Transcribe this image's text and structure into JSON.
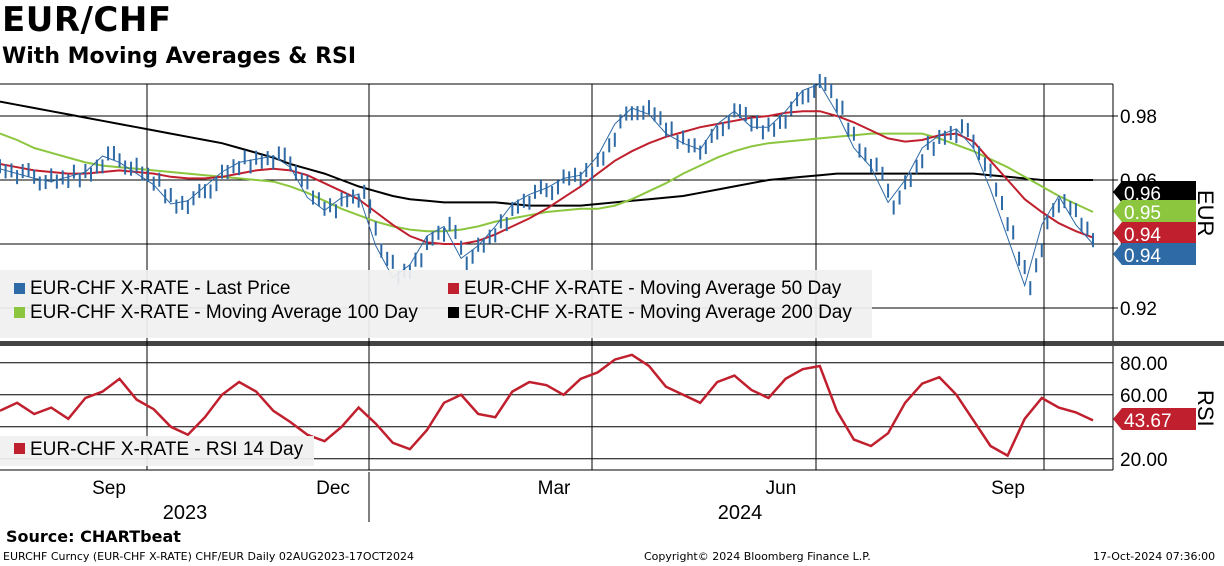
{
  "header": {
    "title": "EUR/CHF",
    "subtitle": "With Moving Averages & RSI"
  },
  "footer": {
    "source": "Source: CHARTbeat",
    "security": "EURCHF Curncy (EUR-CHF X-RATE) CHF/EUR  Daily 02AUG2023-17OCT2024",
    "copyright": "Copyright© 2024 Bloomberg Finance L.P.",
    "timestamp": "17-Oct-2024 07:36:00"
  },
  "colors": {
    "price": "#2e6aa6",
    "ma50": "#c0202e",
    "ma100": "#8cc63f",
    "ma200": "#000000",
    "rsi": "#c0202e"
  },
  "chart_data": [
    {
      "type": "line",
      "title": "EUR/CHF",
      "ylabel": "EUR",
      "ylim": [
        0.91,
        0.99
      ],
      "yticks": [
        0.92,
        0.94,
        0.96,
        0.98
      ],
      "ytick_labels": [
        "0.92",
        "0.94",
        "0.96",
        "0.98"
      ],
      "x_month_labels": [
        "Sep",
        "Dec",
        "Mar",
        "Jun",
        "Sep"
      ],
      "x_year_labels": [
        "2023",
        "2024"
      ],
      "x": [
        0,
        1,
        2,
        3,
        4,
        5,
        6,
        7,
        8,
        9,
        10,
        11,
        12,
        13,
        14,
        15,
        16,
        17,
        18,
        19,
        20,
        21,
        22,
        23,
        24,
        25,
        26,
        27,
        28,
        29,
        30,
        31,
        32,
        33,
        34,
        35,
        36,
        37,
        38,
        39,
        40,
        41,
        42,
        43,
        44,
        45,
        46,
        47,
        48,
        49,
        50,
        51,
        52,
        53,
        54,
        55,
        56,
        57,
        58,
        59,
        60,
        61,
        62,
        63,
        64
      ],
      "series": [
        {
          "name": "EUR-CHF X-RATE - Last Price",
          "color": "#2e6aa6",
          "values": [
            0.9635,
            0.962,
            0.9605,
            0.9595,
            0.961,
            0.9625,
            0.9675,
            0.9655,
            0.962,
            0.9585,
            0.9525,
            0.9535,
            0.958,
            0.9625,
            0.9655,
            0.9665,
            0.9675,
            0.964,
            0.9545,
            0.9505,
            0.9545,
            0.9555,
            0.9395,
            0.9295,
            0.9335,
            0.9425,
            0.9455,
            0.9355,
            0.9395,
            0.9455,
            0.9525,
            0.9555,
            0.9575,
            0.9605,
            0.9615,
            0.9675,
            0.9775,
            0.9825,
            0.9805,
            0.9745,
            0.9715,
            0.9695,
            0.9775,
            0.9815,
            0.9765,
            0.9765,
            0.9815,
            0.988,
            0.99,
            0.981,
            0.97,
            0.964,
            0.953,
            0.96,
            0.97,
            0.974,
            0.976,
            0.97,
            0.957,
            0.942,
            0.927,
            0.946,
            0.955,
            0.946,
            0.94
          ]
        },
        {
          "name": "EUR-CHF X-RATE - Moving Average 50 Day",
          "color": "#c0202e",
          "values": [
            0.965,
            0.964,
            0.963,
            0.9625,
            0.962,
            0.962,
            0.9625,
            0.963,
            0.9625,
            0.962,
            0.961,
            0.9605,
            0.9605,
            0.961,
            0.962,
            0.963,
            0.9635,
            0.963,
            0.9615,
            0.959,
            0.9565,
            0.954,
            0.95,
            0.946,
            0.9425,
            0.9405,
            0.94,
            0.94,
            0.941,
            0.943,
            0.9455,
            0.948,
            0.951,
            0.9545,
            0.958,
            0.962,
            0.966,
            0.969,
            0.9715,
            0.9735,
            0.975,
            0.9765,
            0.9775,
            0.9785,
            0.9795,
            0.98,
            0.981,
            0.9815,
            0.9815,
            0.98,
            0.978,
            0.9755,
            0.973,
            0.972,
            0.9725,
            0.974,
            0.9745,
            0.972,
            0.966,
            0.96,
            0.954,
            0.95,
            0.9465,
            0.944,
            0.942
          ]
        },
        {
          "name": "EUR-CHF X-RATE - Moving Average 100 Day",
          "color": "#8cc63f",
          "values": [
            0.9745,
            0.9725,
            0.97,
            0.9685,
            0.967,
            0.9655,
            0.9645,
            0.964,
            0.9635,
            0.963,
            0.9625,
            0.962,
            0.9615,
            0.961,
            0.9605,
            0.96,
            0.9595,
            0.958,
            0.956,
            0.9535,
            0.951,
            0.949,
            0.947,
            0.9455,
            0.9445,
            0.944,
            0.944,
            0.9445,
            0.9455,
            0.947,
            0.948,
            0.949,
            0.95,
            0.9505,
            0.951,
            0.951,
            0.952,
            0.954,
            0.9565,
            0.959,
            0.962,
            0.9645,
            0.967,
            0.969,
            0.9705,
            0.9715,
            0.972,
            0.9725,
            0.973,
            0.9735,
            0.974,
            0.9745,
            0.9745,
            0.9745,
            0.9745,
            0.973,
            0.971,
            0.969,
            0.9665,
            0.964,
            0.961,
            0.958,
            0.955,
            0.9525,
            0.95
          ]
        },
        {
          "name": "EUR-CHF X-RATE - Moving Average 200 Day",
          "color": "#000000",
          "values": [
            0.9845,
            0.9835,
            0.9825,
            0.9815,
            0.9805,
            0.9795,
            0.9785,
            0.9775,
            0.9765,
            0.9755,
            0.9745,
            0.9735,
            0.9725,
            0.9715,
            0.97,
            0.9685,
            0.967,
            0.965,
            0.9635,
            0.962,
            0.96,
            0.958,
            0.9565,
            0.955,
            0.954,
            0.9535,
            0.953,
            0.953,
            0.953,
            0.953,
            0.9525,
            0.952,
            0.952,
            0.952,
            0.952,
            0.9525,
            0.953,
            0.9535,
            0.954,
            0.9545,
            0.955,
            0.956,
            0.957,
            0.958,
            0.959,
            0.96,
            0.9605,
            0.961,
            0.9615,
            0.962,
            0.962,
            0.962,
            0.962,
            0.962,
            0.962,
            0.962,
            0.962,
            0.962,
            0.9615,
            0.961,
            0.9605,
            0.96,
            0.96,
            0.96,
            0.96
          ]
        }
      ],
      "last_value_labels": [
        {
          "text": "0.96",
          "color": "#000000"
        },
        {
          "text": "0.95",
          "color": "#8cc63f"
        },
        {
          "text": "0.94",
          "color": "#c0202e"
        },
        {
          "text": "0.94",
          "color": "#2e6aa6"
        }
      ],
      "legend": {
        "placement": "bottom-left",
        "items": [
          {
            "label": "EUR-CHF X-RATE - Last Price",
            "color": "#2e6aa6"
          },
          {
            "label": "EUR-CHF X-RATE - Moving Average 50 Day",
            "color": "#c0202e"
          },
          {
            "label": "EUR-CHF X-RATE - Moving Average 100 Day",
            "color": "#8cc63f"
          },
          {
            "label": "EUR-CHF X-RATE - Moving Average 200 Day",
            "color": "#000000"
          }
        ]
      }
    },
    {
      "type": "line",
      "title": "RSI",
      "ylabel": "RSI",
      "ylim": [
        13,
        88
      ],
      "yticks": [
        20,
        60,
        80
      ],
      "ytick_labels": [
        "20.00",
        "60.00",
        "80.00"
      ],
      "series": [
        {
          "name": "EUR-CHF X-RATE - RSI 14 Day",
          "color": "#c0202e",
          "values": [
            50,
            55,
            48,
            52,
            45,
            58,
            62,
            70,
            57,
            51,
            40,
            35,
            46,
            60,
            68,
            62,
            50,
            43,
            35,
            31,
            40,
            52,
            42,
            30,
            26,
            38,
            55,
            60,
            48,
            46,
            62,
            68,
            66,
            60,
            70,
            74,
            82,
            85,
            78,
            65,
            60,
            55,
            68,
            72,
            63,
            58,
            70,
            76,
            78,
            50,
            32,
            28,
            36,
            55,
            67,
            71,
            60,
            44,
            28,
            22,
            45,
            58,
            52,
            49,
            44
          ]
        }
      ],
      "last_value_labels": [
        {
          "text": "43.67",
          "color": "#c0202e"
        }
      ],
      "legend": {
        "placement": "bottom-left",
        "items": [
          {
            "label": "EUR-CHF X-RATE - RSI 14 Day",
            "color": "#c0202e"
          }
        ]
      }
    }
  ]
}
